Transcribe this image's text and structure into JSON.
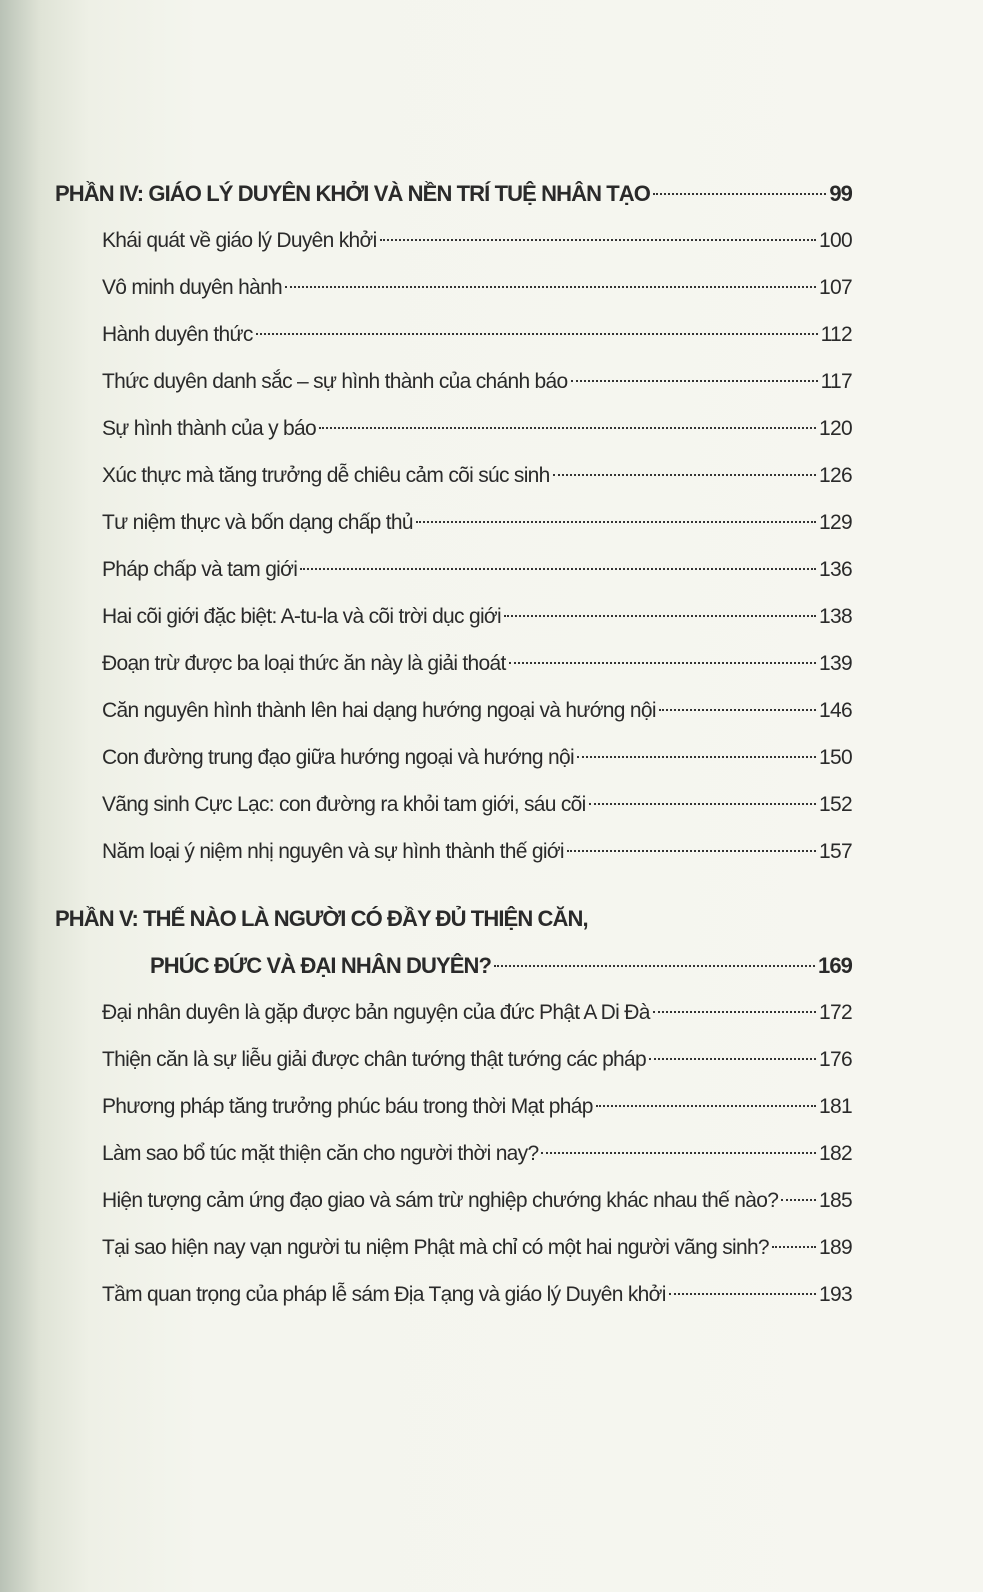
{
  "part4": {
    "heading": "PHẦN IV: GIÁO LÝ DUYÊN KHỞI VÀ NỀN TRÍ TUỆ NHÂN TẠO",
    "page": "99",
    "entries": [
      {
        "title": "Khái quát về giáo lý Duyên khởi",
        "page": "100"
      },
      {
        "title": "Vô minh duyên hành",
        "page": "107"
      },
      {
        "title": "Hành duyên thức",
        "page": "112"
      },
      {
        "title": "Thức duyên danh sắc – sự hình thành của chánh báo",
        "page": "117"
      },
      {
        "title": "Sự hình thành của y báo",
        "page": "120"
      },
      {
        "title": "Xúc thực mà tăng trưởng dễ chiêu cảm cõi súc sinh",
        "page": "126"
      },
      {
        "title": "Tư niệm thực và bốn dạng chấp thủ",
        "page": "129"
      },
      {
        "title": "Pháp chấp và tam giới",
        "page": "136"
      },
      {
        "title": "Hai cõi giới đặc biệt: A-tu-la và cõi trời dục giới",
        "page": "138"
      },
      {
        "title": "Đoạn trừ được ba loại thức ăn này là giải thoát",
        "page": "139"
      },
      {
        "title": "Căn nguyên hình thành lên hai dạng hướng ngoại và hướng nội",
        "page": "146"
      },
      {
        "title": "Con đường trung đạo giữa hướng ngoại và hướng nội",
        "page": "150"
      },
      {
        "title": "Vãng sinh Cực Lạc: con đường ra khỏi tam giới, sáu cõi",
        "page": "152"
      },
      {
        "title": "Năm loại ý niệm nhị nguyên và sự hình thành thế giới",
        "page": "157"
      }
    ]
  },
  "part5": {
    "heading_line1": "PHẦN V: THẾ NÀO LÀ NGƯỜI CÓ ĐẦY ĐỦ THIỆN CĂN,",
    "heading_line2": "PHÚC ĐỨC VÀ ĐẠI NHÂN DUYÊN?",
    "page": "169",
    "entries": [
      {
        "title": "Đại nhân duyên là gặp được bản nguyện của đức Phật A Di Đà",
        "page": "172"
      },
      {
        "title": "Thiện căn là sự liễu giải được chân tướng thật tướng các pháp",
        "page": "176"
      },
      {
        "title": "Phương pháp tăng trưởng phúc báu trong thời Mạt pháp",
        "page": "181"
      },
      {
        "title": "Làm sao bổ túc mặt thiện căn cho người thời nay?",
        "page": "182"
      },
      {
        "title": "Hiện tượng cảm ứng đạo giao và sám trừ nghiệp chướng khác nhau thế nào?",
        "page": "185"
      },
      {
        "title": "Tại sao hiện nay vạn người tu niệm Phật mà chỉ có một hai người vãng sinh?",
        "page": "189"
      },
      {
        "title": "Tầm quan trọng của pháp lễ sám Địa Tạng và giáo lý Duyên khởi",
        "page": "193"
      }
    ]
  }
}
